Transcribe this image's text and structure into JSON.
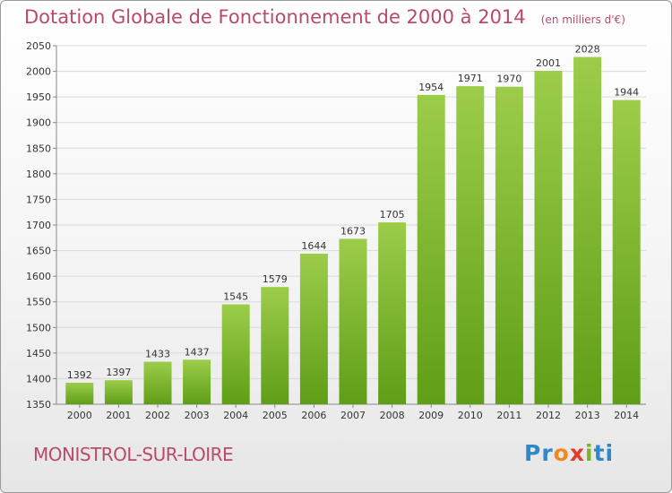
{
  "header": {
    "title": "Dotation Globale de Fonctionnement de 2000 à 2014",
    "subtitle": "(en milliers d'€)"
  },
  "footer": {
    "commune": "MONISTROL-SUR-LOIRE",
    "logo_letters": [
      "P",
      "r",
      "o",
      "x",
      "i",
      "t",
      "i"
    ],
    "logo_colors": [
      "#2e88c9",
      "#2e88c9",
      "#f08a1c",
      "#e23b2e",
      "#7db32b",
      "#2e88c9",
      "#2e88c9"
    ]
  },
  "chart_data": {
    "type": "bar",
    "categories": [
      "2000",
      "2001",
      "2002",
      "2003",
      "2004",
      "2005",
      "2006",
      "2007",
      "2008",
      "2009",
      "2010",
      "2011",
      "2012",
      "2013",
      "2014"
    ],
    "values": [
      1392,
      1397,
      1433,
      1437,
      1545,
      1579,
      1644,
      1673,
      1705,
      1954,
      1971,
      1970,
      2001,
      2028,
      1944
    ],
    "ylim": [
      1350,
      2050
    ],
    "yticks": [
      1350,
      1400,
      1450,
      1500,
      1550,
      1600,
      1650,
      1700,
      1750,
      1800,
      1850,
      1900,
      1950,
      2000,
      2050
    ],
    "grid": true,
    "bar_color_top": "#9ccd4a",
    "bar_color_bottom": "#5f9e16",
    "title_color": "#b94a69"
  }
}
